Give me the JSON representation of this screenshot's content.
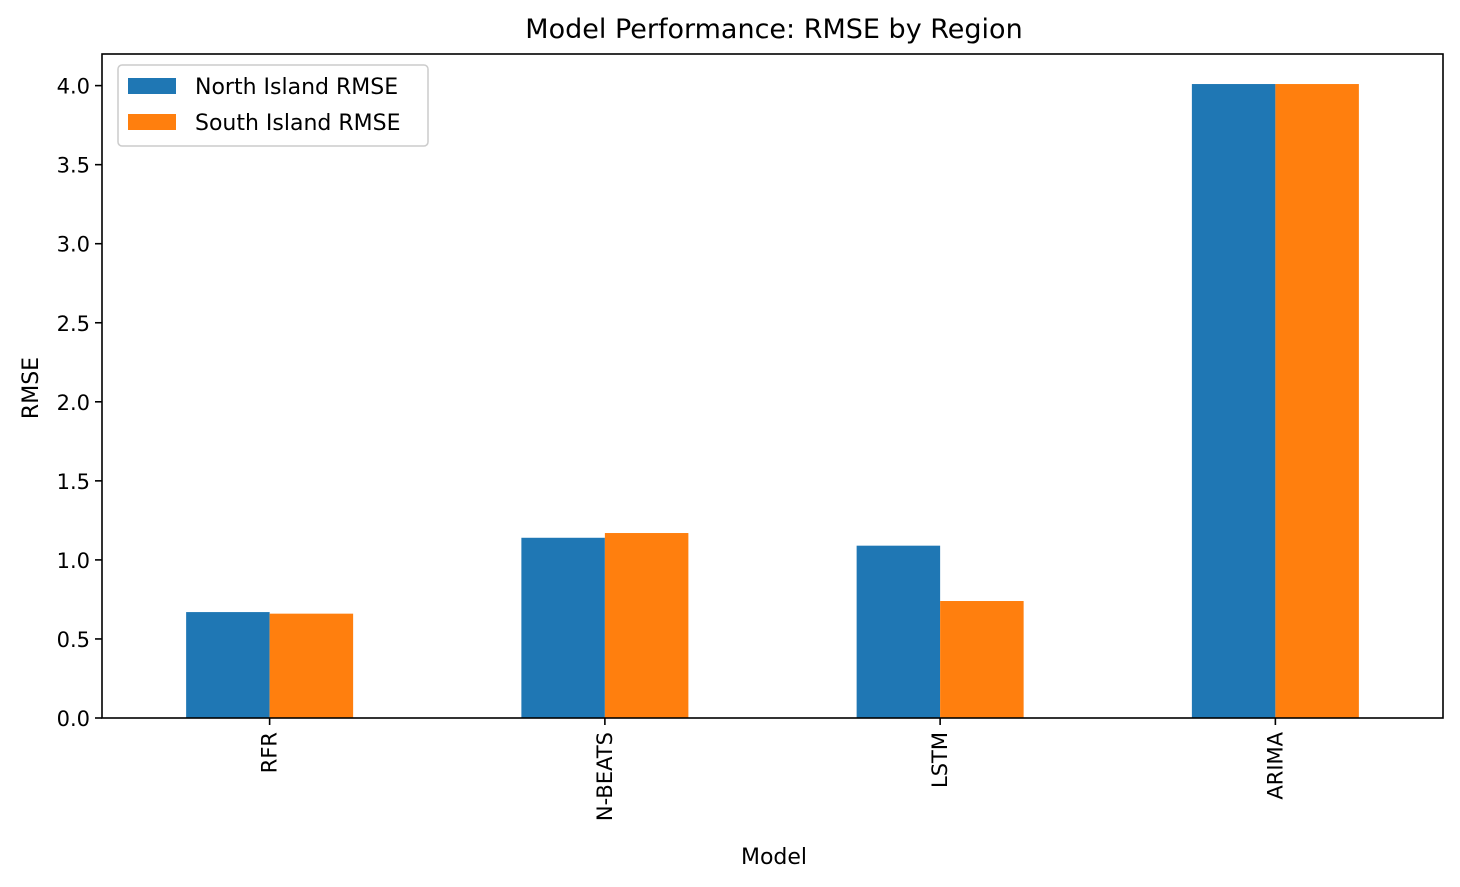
{
  "chart_data": {
    "type": "bar",
    "title": "Model Performance: RMSE by Region",
    "xlabel": "Model",
    "ylabel": "RMSE",
    "categories": [
      "RFR",
      "N-BEATS",
      "LSTM",
      "ARIMA"
    ],
    "series": [
      {
        "name": "North Island RMSE",
        "color": "#1f77b4",
        "values": [
          0.67,
          1.14,
          1.09,
          4.01
        ]
      },
      {
        "name": "South Island RMSE",
        "color": "#ff7f0e",
        "values": [
          0.66,
          1.17,
          0.74,
          4.01
        ]
      }
    ],
    "ylim": [
      0,
      4.2
    ],
    "yticks": [
      0.0,
      0.5,
      1.0,
      1.5,
      2.0,
      2.5,
      3.0,
      3.5,
      4.0
    ],
    "ytick_labels": [
      "0.0",
      "0.5",
      "1.0",
      "1.5",
      "2.0",
      "2.5",
      "3.0",
      "3.5",
      "4.0"
    ],
    "legend_position": "top-left",
    "grid": false,
    "xtick_rotation": "vertical"
  }
}
